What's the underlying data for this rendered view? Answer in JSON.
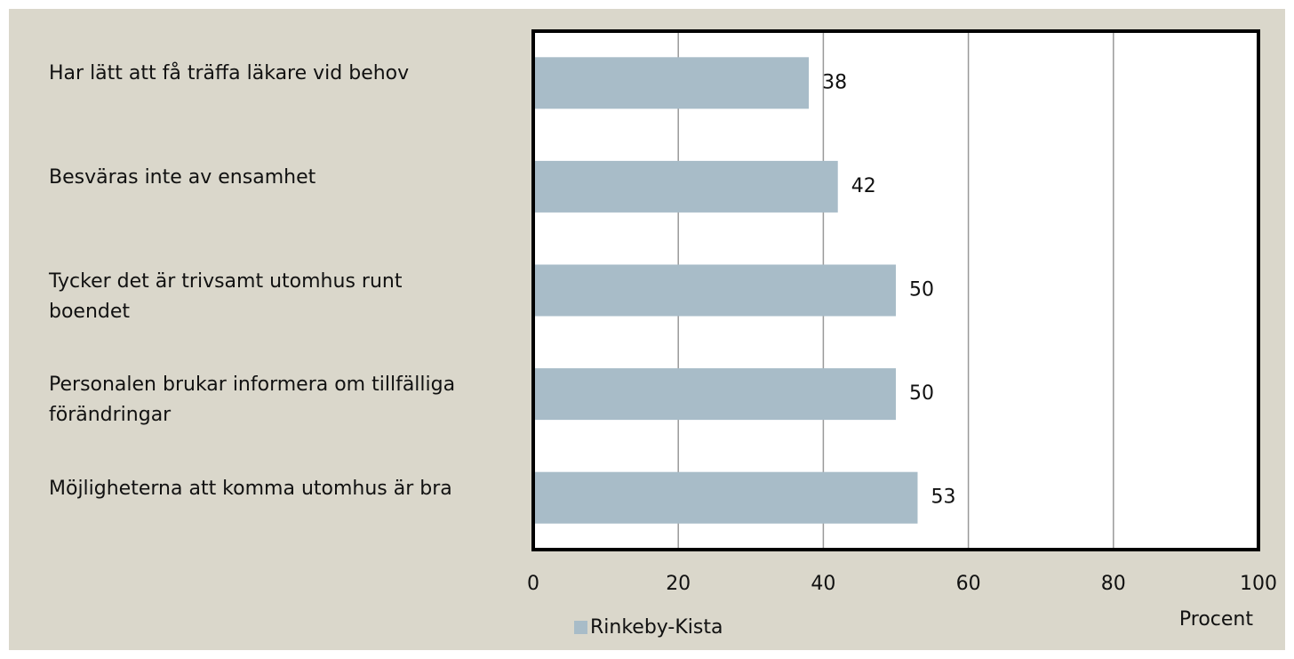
{
  "chart_data": {
    "type": "bar",
    "orientation": "horizontal",
    "categories": [
      "Har lätt att få träffa läkare vid behov",
      "Besväras inte av ensamhet",
      "Tycker det är trivsamt utomhus runt boendet",
      "Personalen brukar informera om tillfälliga förändringar",
      "Möjligheterna att komma utomhus är bra"
    ],
    "series": [
      {
        "name": "Rinkeby-Kista",
        "color": "#a8bcc8",
        "values": [
          38,
          42,
          50,
          50,
          53
        ]
      }
    ],
    "xlim": [
      0,
      100
    ],
    "xticks": [
      0,
      20,
      40,
      60,
      80,
      100
    ],
    "xlabel": "Procent",
    "grid": true,
    "legend": "bottom"
  }
}
